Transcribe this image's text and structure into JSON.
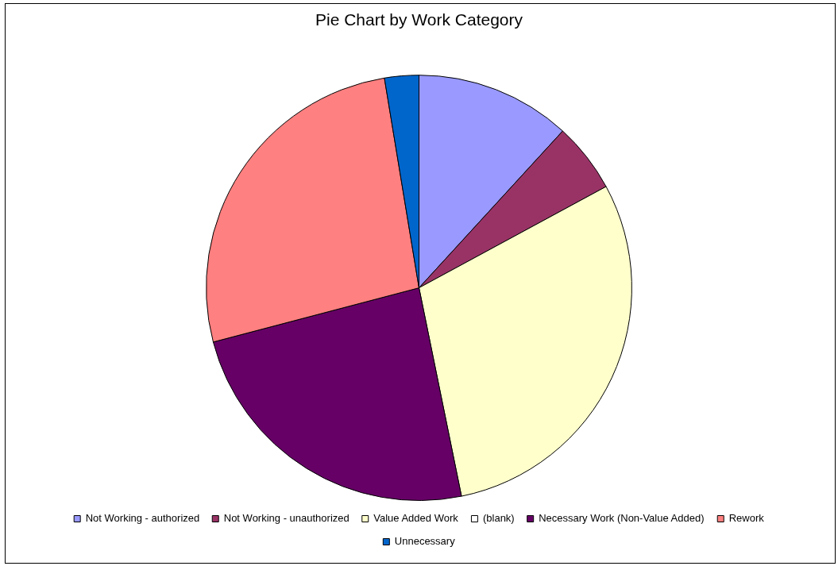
{
  "chart_data": {
    "type": "pie",
    "title": "Pie Chart by Work Category",
    "categories": [
      "Not Working - authorized",
      "Not Working - unauthorized",
      "Value Added Work",
      "(blank)",
      "Necessary Work (Non-Value Added)",
      "Rework",
      "Unnecessary"
    ],
    "values": [
      11.8,
      5.3,
      29.7,
      0,
      24.1,
      26.5,
      2.6
    ],
    "colors": [
      "#9999ff",
      "#993366",
      "#ffffcc",
      "#ffffff",
      "#660066",
      "#ff8080",
      "#0066cc"
    ],
    "legend": "bottom"
  }
}
